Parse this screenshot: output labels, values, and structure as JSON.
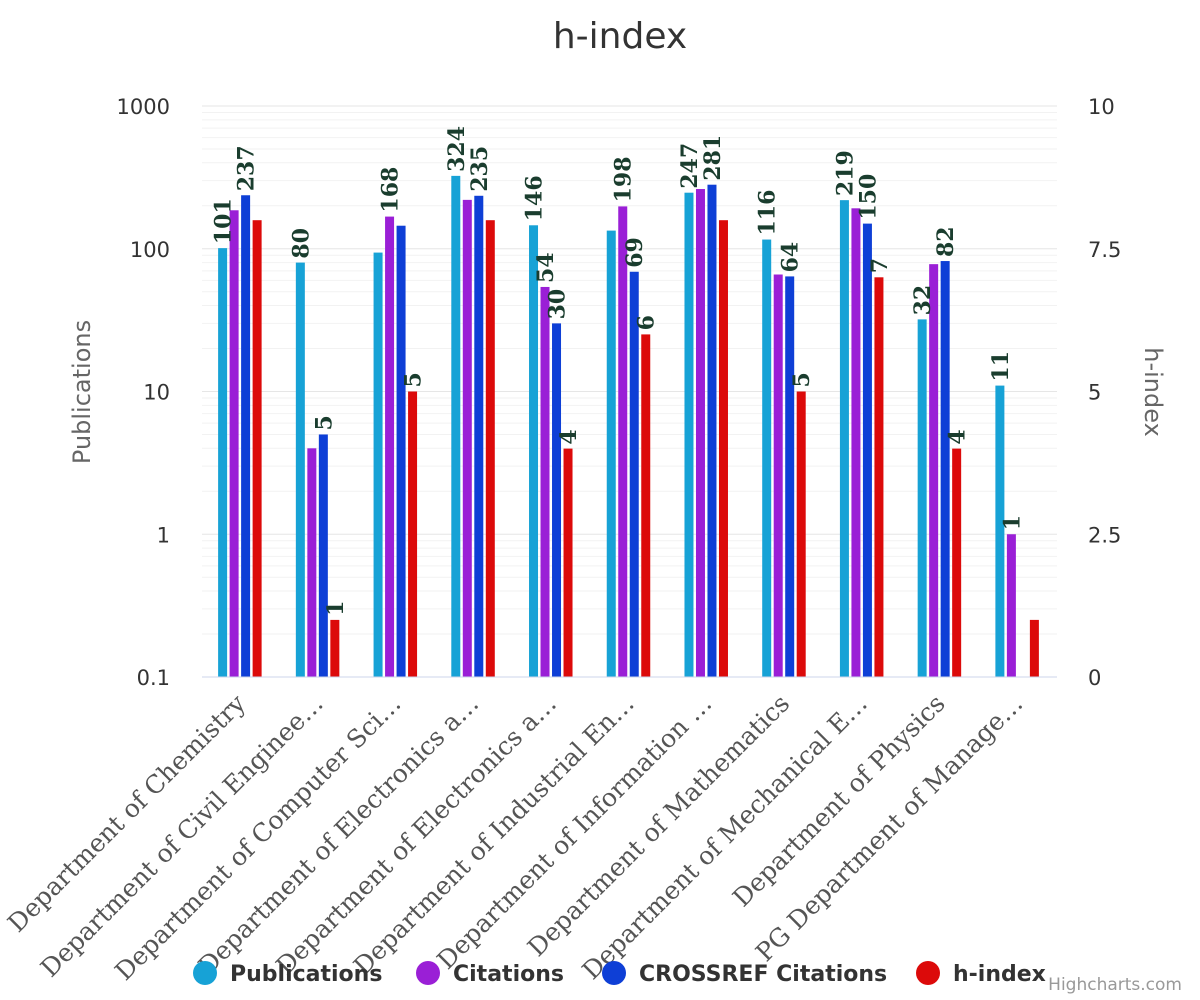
{
  "credits": "Highcharts.com",
  "chart_data": {
    "type": "bar",
    "title": "h-index",
    "xlabel": "",
    "ylabel": "Publications",
    "ylabel_right": "h-index",
    "yscale": "log",
    "ylim": [
      0.1,
      1000
    ],
    "yticks": [
      "0.1",
      "1",
      "10",
      "100",
      "1000"
    ],
    "ylim_right": [
      0,
      10
    ],
    "yticks_right": [
      "0",
      "2.5",
      "5",
      "7.5",
      "10"
    ],
    "grid": true,
    "legend": "bottom",
    "categories": [
      "Department of Chemistry",
      "Department of Civil Enginee…",
      "Department of Computer Sci…",
      "Department of Electronics a…",
      "Department of Electronics a…",
      "Department of Industrial En…",
      "Department of Information …",
      "Department of Mathematics",
      "Department of Mechanical E…",
      "Department of Physics",
      "PG Department of Manage…"
    ],
    "series": [
      {
        "name": "Publications",
        "color": "#17a2d6",
        "axis": "left",
        "values": [
          101,
          80,
          94,
          324,
          146,
          134,
          247,
          116,
          219,
          32,
          11
        ],
        "labels": [
          "101",
          "80",
          "",
          "324",
          "146",
          "",
          "247",
          "116",
          "219",
          "32",
          "11"
        ]
      },
      {
        "name": "Citations",
        "color": "#9a1fd6",
        "axis": "left",
        "values": [
          186,
          4,
          168,
          220,
          54,
          198,
          262,
          66,
          192,
          78,
          1
        ],
        "labels": [
          "",
          "",
          "168",
          "",
          "54",
          "198",
          "",
          "",
          "",
          "",
          "1"
        ]
      },
      {
        "name": "CROSSREF Citations",
        "color": "#0e3fd6",
        "axis": "left",
        "values": [
          237,
          5,
          145,
          235,
          30,
          69,
          281,
          64,
          150,
          82,
          null
        ],
        "labels": [
          "237",
          "5",
          "",
          "235",
          "30",
          "69",
          "281",
          "64",
          "150",
          "82",
          ""
        ]
      },
      {
        "name": "h-index",
        "color": "#dc0a0a",
        "axis": "right",
        "values": [
          8,
          1,
          5,
          8,
          4,
          6,
          8,
          5,
          7,
          4,
          1
        ],
        "labels": [
          "",
          "1",
          "5",
          "",
          "4",
          "6",
          "",
          "5",
          "7",
          "4",
          ""
        ]
      }
    ]
  }
}
